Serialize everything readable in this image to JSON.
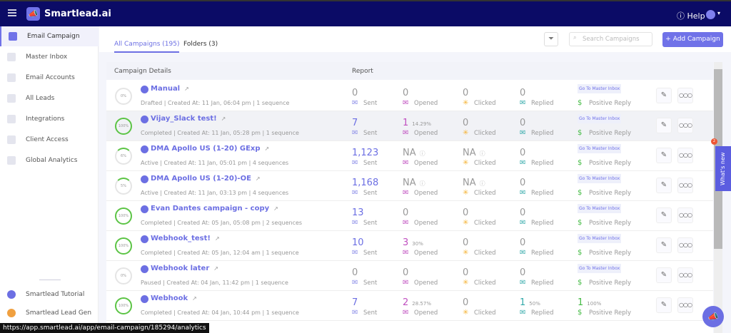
{
  "app": {
    "brand": "Smartlead.ai",
    "help": "Help"
  },
  "sidebar": {
    "items": [
      {
        "label": "Email Campaign",
        "active": true
      },
      {
        "label": "Master Inbox"
      },
      {
        "label": "Email Accounts"
      },
      {
        "label": "All Leads"
      },
      {
        "label": "Integrations"
      },
      {
        "label": "Client Access"
      },
      {
        "label": "Global Analytics"
      }
    ],
    "bottom": [
      {
        "label": "Smartlead Tutorial"
      },
      {
        "label": "Smartlead Lead Gen"
      }
    ]
  },
  "tabs": [
    {
      "label": "All Campaigns (195)"
    },
    {
      "label": "Folders (3)"
    }
  ],
  "search": {
    "placeholder": "Search Campaigns"
  },
  "add_button": "+ Add Campaign",
  "table": {
    "headers": {
      "details": "Campaign Details",
      "report": "Report"
    },
    "labels": {
      "sent": "Sent",
      "opened": "Opened",
      "clicked": "Clicked",
      "replied": "Replied",
      "positive": "Positive Reply",
      "go_master": "Go To Master Inbox"
    },
    "rows": [
      {
        "progress": "0%",
        "name": "Manual",
        "sub": "Drafted | Created At: 11 Jan, 06:04 pm | 1 sequence",
        "sent": "0",
        "opened": "0",
        "opened_pct": "",
        "clicked": "0",
        "replied": "0",
        "replied_pct": "",
        "positive": "",
        "positive_pct": ""
      },
      {
        "progress": "100%",
        "name": "Vijay_Slack test!",
        "sub": "Completed | Created At: 11 Jan, 05:28 pm | 1 sequence",
        "sent": "7",
        "opened": "1",
        "opened_pct": "14.29%",
        "clicked": "0",
        "replied": "0",
        "replied_pct": "",
        "positive": "",
        "positive_pct": "",
        "highlight": true
      },
      {
        "progress": "6%",
        "name": "DMA Apollo US (1-20) GExp",
        "sub": "Active | Created At: 11 Jan, 05:01 pm | 4 sequences",
        "sent": "1,123",
        "opened": "NA",
        "opened_pct": "",
        "clicked": "NA",
        "replied": "0",
        "replied_pct": "",
        "positive": "",
        "positive_pct": ""
      },
      {
        "progress": "5%",
        "name": "DMA Apollo US (1-20)-OE",
        "sub": "Active | Created At: 11 Jan, 03:13 pm | 4 sequences",
        "sent": "1,168",
        "opened": "NA",
        "opened_pct": "",
        "clicked": "NA",
        "replied": "0",
        "replied_pct": "",
        "positive": "",
        "positive_pct": ""
      },
      {
        "progress": "100%",
        "name": "Evan Dantes campaign - copy",
        "sub": "Completed | Created At: 05 Jan, 05:08 pm | 2 sequences",
        "sent": "13",
        "opened": "0",
        "opened_pct": "",
        "clicked": "0",
        "replied": "0",
        "replied_pct": "",
        "positive": "",
        "positive_pct": ""
      },
      {
        "progress": "100%",
        "name": "Webhook_test!",
        "sub": "Completed | Created At: 05 Jan, 12:04 am | 1 sequence",
        "sent": "10",
        "opened": "3",
        "opened_pct": "30%",
        "clicked": "0",
        "replied": "0",
        "replied_pct": "",
        "positive": "",
        "positive_pct": ""
      },
      {
        "progress": "0%",
        "name": "Webhook later",
        "sub": "Paused | Created At: 04 Jan, 11:42 pm | 1 sequence",
        "sent": "0",
        "opened": "0",
        "opened_pct": "",
        "clicked": "0",
        "replied": "0",
        "replied_pct": "",
        "positive": "",
        "positive_pct": ""
      },
      {
        "progress": "100%",
        "name": "Webhook",
        "sub": "Completed | Created At: 04 Jan, 10:44 pm | 1 sequence",
        "sent": "7",
        "opened": "2",
        "opened_pct": "28.57%",
        "clicked": "0",
        "replied": "1",
        "replied_pct": "50%",
        "positive": "1",
        "positive_pct": "100%"
      }
    ]
  },
  "whats_new": {
    "label": "What's new",
    "badge": "2"
  },
  "status_url": "https://app.smartlead.ai/app/email-campaign/185294/analytics",
  "colors": {
    "accent": "#7072e8",
    "topbar": "#0b0b66",
    "complete": "#5cc445"
  }
}
